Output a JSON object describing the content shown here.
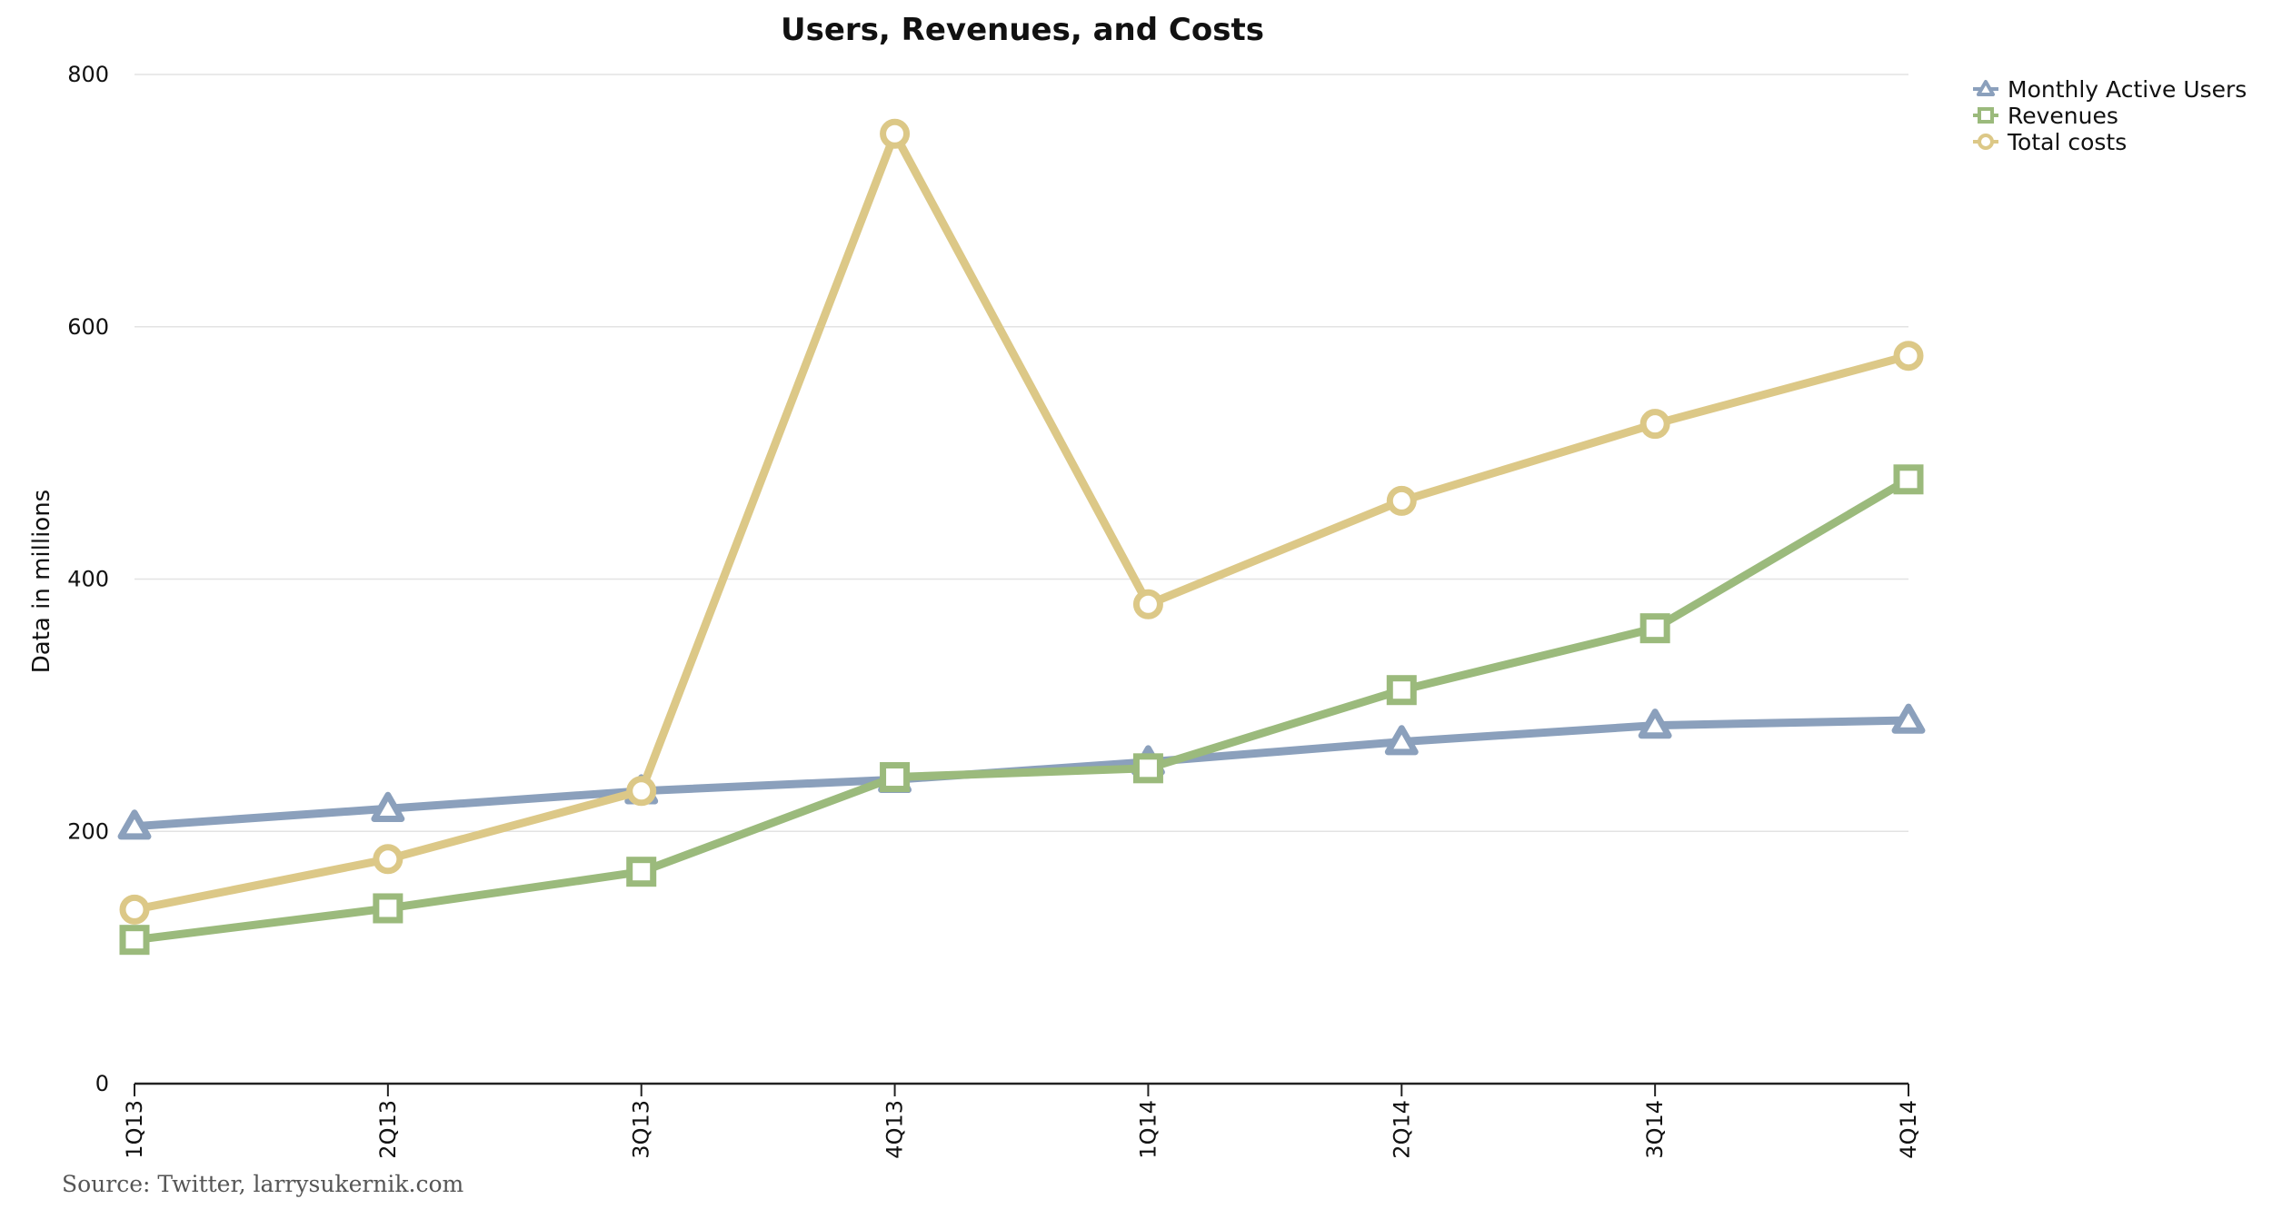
{
  "chart_data": {
    "type": "line",
    "title": "Users, Revenues, and Costs",
    "xlabel": "",
    "ylabel": "Data in millions",
    "categories": [
      "1Q13",
      "2Q13",
      "3Q13",
      "4Q13",
      "1Q14",
      "2Q14",
      "3Q14",
      "4Q14"
    ],
    "ylim": [
      0,
      800
    ],
    "yticks": [
      "0",
      "200",
      "400",
      "600",
      "800"
    ],
    "grid": true,
    "legend_position": "top-right",
    "series": [
      {
        "name": "Monthly Active Users",
        "color": "#8ba0bc",
        "marker": "triangle",
        "values": [
          204,
          218,
          232,
          241,
          255,
          271,
          284,
          288
        ]
      },
      {
        "name": "Revenues",
        "color": "#9bba7c",
        "marker": "square",
        "values": [
          114,
          139,
          168,
          243,
          250,
          312,
          361,
          479
        ]
      },
      {
        "name": "Total costs",
        "color": "#dcc887",
        "marker": "circle",
        "values": [
          138,
          178,
          232,
          753,
          380,
          462,
          523,
          577
        ]
      }
    ],
    "source": "Source: Twitter, larrysukernik.com"
  }
}
